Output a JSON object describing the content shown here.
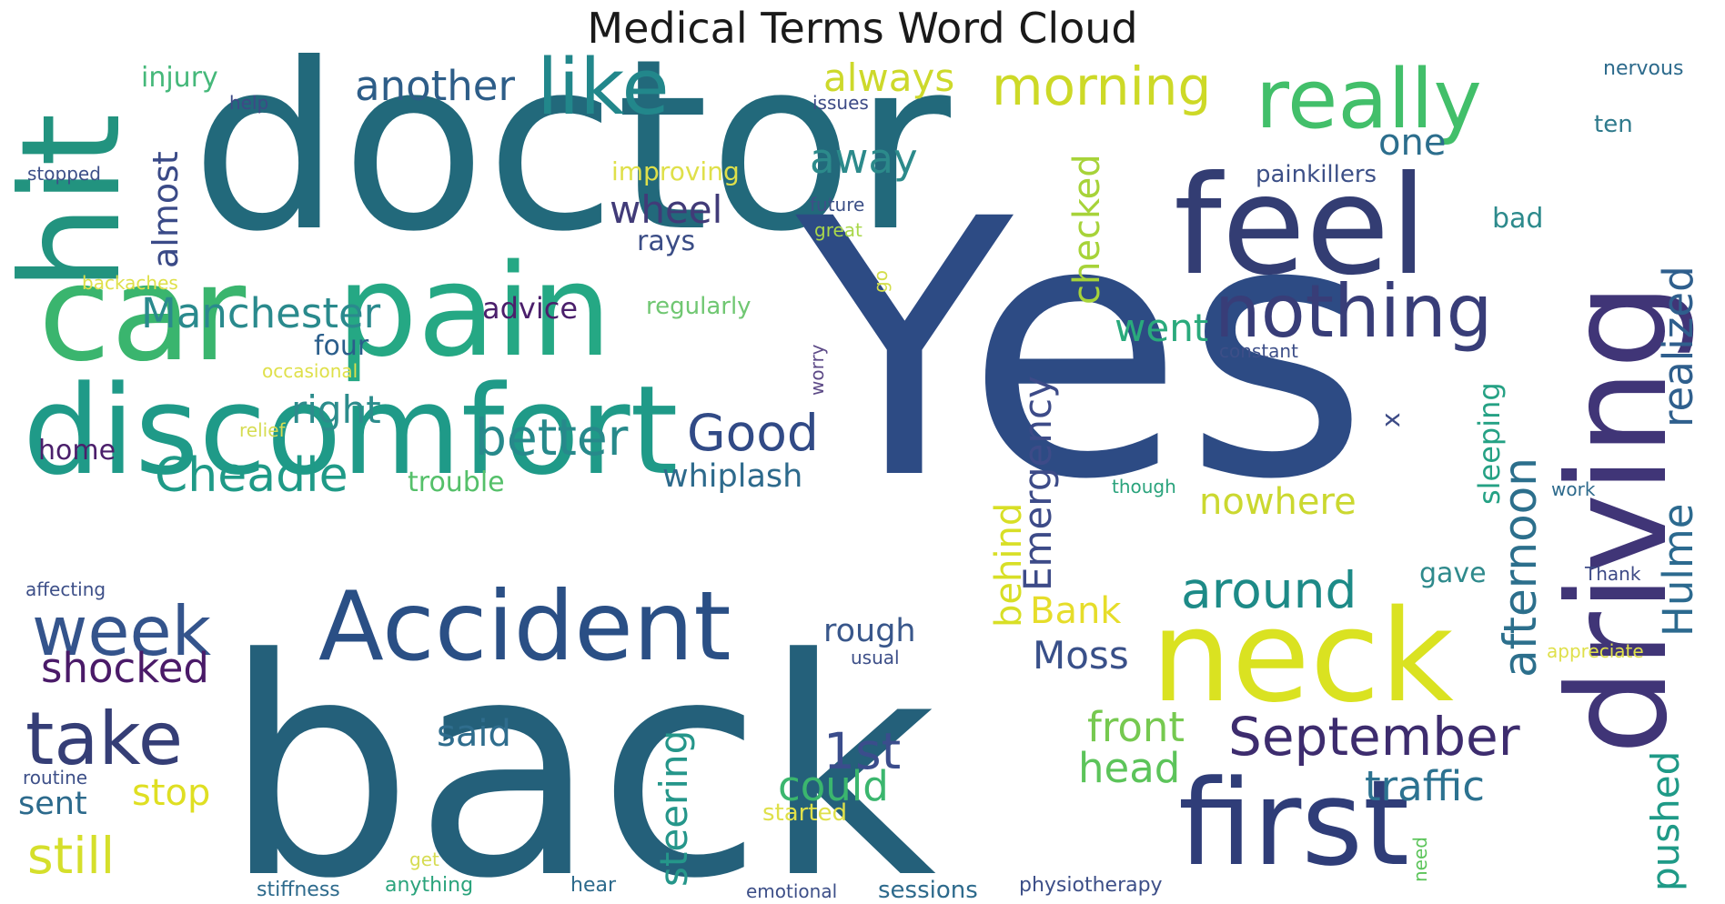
{
  "title": "Medical Terms Word Cloud",
  "words": [
    {
      "text": "doctor",
      "color": "#22697b"
    },
    {
      "text": "Yes",
      "color": "#2d4b84"
    },
    {
      "text": "back",
      "color": "#24607a"
    },
    {
      "text": "discomfort",
      "color": "#1f9a88"
    },
    {
      "text": "pain",
      "color": "#25a884"
    },
    {
      "text": "car",
      "color": "#3ab56e"
    },
    {
      "text": "hit",
      "color": "#22937f"
    },
    {
      "text": "feel",
      "color": "#333d73"
    },
    {
      "text": "driving",
      "color": "#403577"
    },
    {
      "text": "neck",
      "color": "#dae221"
    },
    {
      "text": "first",
      "color": "#2f3d78"
    },
    {
      "text": "Accident",
      "color": "#2a4f85"
    },
    {
      "text": "really",
      "color": "#42bf6a"
    },
    {
      "text": "nothing",
      "color": "#383d78"
    },
    {
      "text": "like",
      "color": "#22878b"
    },
    {
      "text": "take",
      "color": "#353e76"
    },
    {
      "text": "week",
      "color": "#34548c"
    },
    {
      "text": "morning",
      "color": "#cdd927"
    },
    {
      "text": "afternoon",
      "color": "#2c6f8c"
    },
    {
      "text": "realized",
      "color": "#2f5f8d"
    },
    {
      "text": "Hulme",
      "color": "#2c6a8f"
    },
    {
      "text": "September",
      "color": "#3d2c6e"
    },
    {
      "text": "around",
      "color": "#1d8a87"
    },
    {
      "text": "Good",
      "color": "#314a86"
    },
    {
      "text": "better",
      "color": "#27898b"
    },
    {
      "text": "Cheadle",
      "color": "#1f9a87"
    },
    {
      "text": "Manchester",
      "color": "#2a8a8d"
    },
    {
      "text": "another",
      "color": "#2d5d88"
    },
    {
      "text": "Emergency",
      "color": "#3d4b88"
    },
    {
      "text": "steering",
      "color": "#25968a"
    },
    {
      "text": "shocked",
      "color": "#4a1a68"
    },
    {
      "text": "still",
      "color": "#d5df2b"
    },
    {
      "text": "1st",
      "color": "#3b4d8c"
    },
    {
      "text": "could",
      "color": "#3bb66e"
    },
    {
      "text": "head",
      "color": "#5cc45a"
    },
    {
      "text": "front",
      "color": "#76c950"
    },
    {
      "text": "traffic",
      "color": "#2c7290"
    },
    {
      "text": "pushed",
      "color": "#1f9a87"
    },
    {
      "text": "went",
      "color": "#2aaa7c"
    },
    {
      "text": "checked",
      "color": "#a7d339"
    },
    {
      "text": "behind",
      "color": "#d8df26"
    },
    {
      "text": "right",
      "color": "#2c8c8c"
    },
    {
      "text": "almost",
      "color": "#3a4a87"
    },
    {
      "text": "wheel",
      "color": "#413b78"
    },
    {
      "text": "away",
      "color": "#2c8a8b"
    },
    {
      "text": "always",
      "color": "#cdd92b"
    },
    {
      "text": "one",
      "color": "#2c6e8d"
    },
    {
      "text": "Bank",
      "color": "#e6dd2a"
    },
    {
      "text": "Moss",
      "color": "#395089"
    },
    {
      "text": "said",
      "color": "#2f6d8d"
    },
    {
      "text": "stop",
      "color": "#dfdf22"
    },
    {
      "text": "sent",
      "color": "#2c6a8c"
    },
    {
      "text": "nowhere",
      "color": "#cbd830"
    },
    {
      "text": "sleeping",
      "color": "#25a184"
    },
    {
      "text": "whiplash",
      "color": "#2d6a8c"
    },
    {
      "text": "rough",
      "color": "#39578b"
    },
    {
      "text": "four",
      "color": "#2b5e8b"
    },
    {
      "text": "advice",
      "color": "#4b1f6b"
    },
    {
      "text": "injury",
      "color": "#45b87a"
    },
    {
      "text": "bad",
      "color": "#2d8a8c"
    },
    {
      "text": "gave",
      "color": "#2f8a8c"
    },
    {
      "text": "rays",
      "color": "#3b4d86"
    },
    {
      "text": "trouble",
      "color": "#55c06a"
    },
    {
      "text": "home",
      "color": "#4b1f6b"
    },
    {
      "text": "painkillers",
      "color": "#3d5087"
    },
    {
      "text": "ten",
      "color": "#2f7a8c"
    },
    {
      "text": "improving",
      "color": "#dfe04a"
    },
    {
      "text": "regularly",
      "color": "#70c772"
    },
    {
      "text": "x",
      "color": "#3d4b86"
    },
    {
      "text": "nervous",
      "color": "#2c6a8c"
    },
    {
      "text": "help",
      "color": "#3d4a86"
    },
    {
      "text": "issues",
      "color": "#3d4a86"
    },
    {
      "text": "stopped",
      "color": "#3d4f88"
    },
    {
      "text": "future",
      "color": "#3d5087"
    },
    {
      "text": "great",
      "color": "#a9d74a"
    },
    {
      "text": "go",
      "color": "#d3de4a"
    },
    {
      "text": "backaches",
      "color": "#dfe04a"
    },
    {
      "text": "occasional",
      "color": "#dfe04a"
    },
    {
      "text": "relief",
      "color": "#d6dc52"
    },
    {
      "text": "worry",
      "color": "#5d4a87"
    },
    {
      "text": "constant",
      "color": "#3d4f88"
    },
    {
      "text": "though",
      "color": "#2aa37c"
    },
    {
      "text": "work",
      "color": "#2d6a8c"
    },
    {
      "text": "Thank",
      "color": "#3d4a86"
    },
    {
      "text": "affecting",
      "color": "#3d4f88"
    },
    {
      "text": "usual",
      "color": "#3d4f88"
    },
    {
      "text": "appreciate",
      "color": "#dfe04a"
    },
    {
      "text": "routine",
      "color": "#3d4f88"
    },
    {
      "text": "started",
      "color": "#dfe04a"
    },
    {
      "text": "need",
      "color": "#5cc45a"
    },
    {
      "text": "get",
      "color": "#d6dc52"
    },
    {
      "text": "anything",
      "color": "#2aa37c"
    },
    {
      "text": "hear",
      "color": "#2d6a8c"
    },
    {
      "text": "stiffness",
      "color": "#2d6a8c"
    },
    {
      "text": "emotional",
      "color": "#3d4f88"
    },
    {
      "text": "sessions",
      "color": "#2d6a8c"
    },
    {
      "text": "physiotherapy",
      "color": "#3d4f88"
    }
  ]
}
